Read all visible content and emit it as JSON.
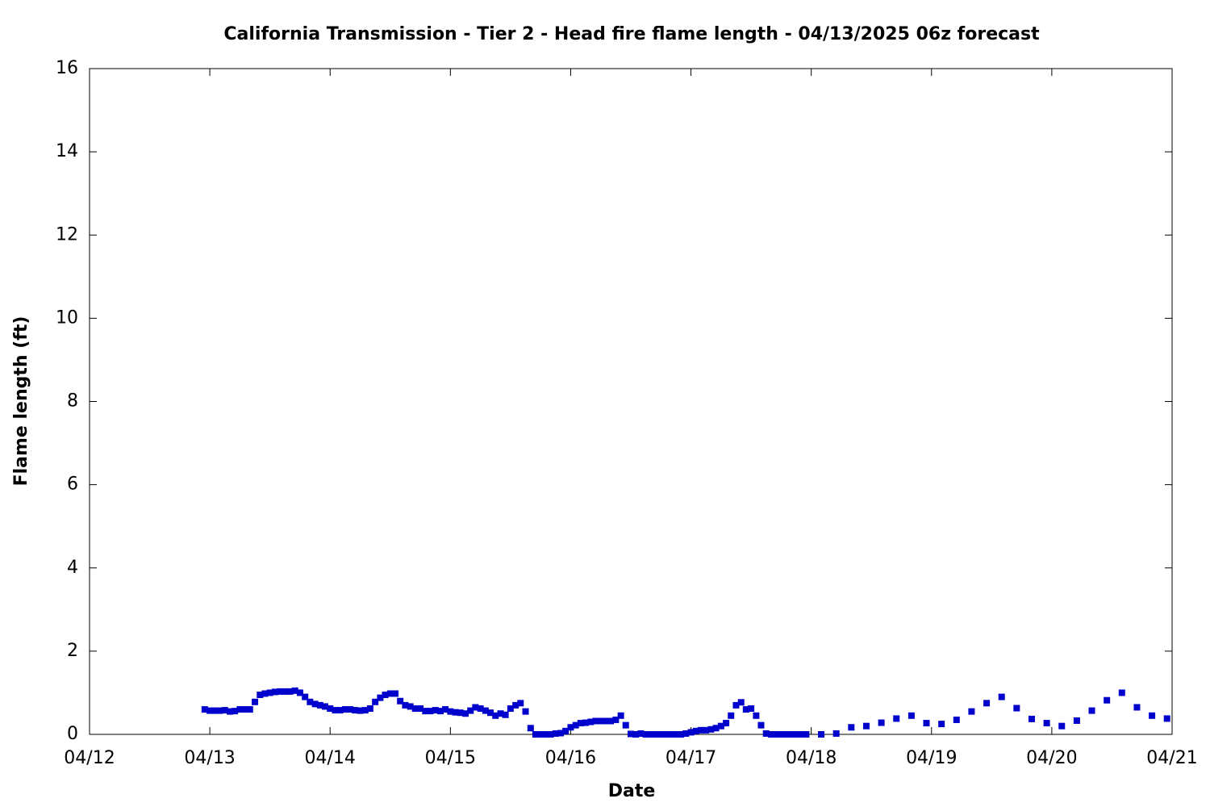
{
  "chart_data": {
    "type": "scatter",
    "title": "California Transmission - Tier 2 - Head fire flame length - 04/13/2025 06z forecast",
    "x_label": "Date",
    "y_label": "Flame length (ft)",
    "xlim": [
      0,
      9
    ],
    "xticks": [
      {
        "value": 0,
        "label": "04/12"
      },
      {
        "value": 1,
        "label": "04/13"
      },
      {
        "value": 2,
        "label": "04/14"
      },
      {
        "value": 3,
        "label": "04/15"
      },
      {
        "value": 4,
        "label": "04/16"
      },
      {
        "value": 5,
        "label": "04/17"
      },
      {
        "value": 6,
        "label": "04/18"
      },
      {
        "value": 7,
        "label": "04/19"
      },
      {
        "value": 8,
        "label": "04/20"
      },
      {
        "value": 9,
        "label": "04/21"
      }
    ],
    "ylim": [
      0,
      16
    ],
    "yticks": [
      0,
      2,
      4,
      6,
      8,
      10,
      12,
      14,
      16
    ],
    "grid": false,
    "series": [
      {
        "color": "#0000cc",
        "x": [
          0.958,
          1.0,
          1.042,
          1.083,
          1.125,
          1.167,
          1.208,
          1.25,
          1.292,
          1.333,
          1.375,
          1.417,
          1.458,
          1.5,
          1.542,
          1.583,
          1.625,
          1.667,
          1.708,
          1.75,
          1.792,
          1.833,
          1.875,
          1.917,
          1.958,
          2.0,
          2.042,
          2.083,
          2.125,
          2.167,
          2.208,
          2.25,
          2.292,
          2.333,
          2.375,
          2.417,
          2.458,
          2.5,
          2.542,
          2.583,
          2.625,
          2.667,
          2.708,
          2.75,
          2.792,
          2.833,
          2.875,
          2.917,
          2.958,
          3.0,
          3.042,
          3.083,
          3.125,
          3.167,
          3.208,
          3.25,
          3.292,
          3.333,
          3.375,
          3.417,
          3.458,
          3.5,
          3.542,
          3.583,
          3.625,
          3.667,
          3.708,
          3.75,
          3.792,
          3.833,
          3.875,
          3.917,
          3.958,
          4.0,
          4.042,
          4.083,
          4.125,
          4.167,
          4.208,
          4.25,
          4.292,
          4.333,
          4.375,
          4.417,
          4.458,
          4.5,
          4.542,
          4.583,
          4.625,
          4.667,
          4.708,
          4.75,
          4.792,
          4.833,
          4.875,
          4.917,
          4.958,
          5.0,
          5.042,
          5.083,
          5.125,
          5.167,
          5.208,
          5.25,
          5.292,
          5.333,
          5.375,
          5.417,
          5.458,
          5.5,
          5.542,
          5.583,
          5.625,
          5.667,
          5.708,
          5.75,
          5.792,
          5.833,
          5.875,
          5.917,
          5.958,
          6.083,
          6.208,
          6.333,
          6.458,
          6.583,
          6.708,
          6.833,
          6.958,
          7.083,
          7.208,
          7.333,
          7.458,
          7.583,
          7.708,
          7.833,
          7.958,
          8.083,
          8.208,
          8.333,
          8.458,
          8.583,
          8.708,
          8.833,
          8.958
        ],
        "values": [
          0.6,
          0.57,
          0.57,
          0.57,
          0.58,
          0.55,
          0.56,
          0.6,
          0.6,
          0.6,
          0.78,
          0.95,
          0.98,
          1.0,
          1.02,
          1.03,
          1.03,
          1.03,
          1.05,
          1.0,
          0.9,
          0.78,
          0.73,
          0.7,
          0.67,
          0.62,
          0.58,
          0.58,
          0.6,
          0.6,
          0.58,
          0.57,
          0.58,
          0.62,
          0.78,
          0.88,
          0.95,
          0.98,
          0.98,
          0.8,
          0.7,
          0.67,
          0.62,
          0.62,
          0.56,
          0.56,
          0.58,
          0.56,
          0.6,
          0.55,
          0.53,
          0.52,
          0.5,
          0.57,
          0.65,
          0.62,
          0.57,
          0.52,
          0.45,
          0.5,
          0.47,
          0.62,
          0.7,
          0.75,
          0.55,
          0.15,
          0,
          0,
          0,
          0,
          0.02,
          0.03,
          0.08,
          0.17,
          0.22,
          0.27,
          0.28,
          0.3,
          0.32,
          0.32,
          0.32,
          0.32,
          0.35,
          0.45,
          0.22,
          0.01,
          0,
          0.02,
          0,
          0,
          0,
          0,
          0,
          0,
          0,
          0,
          0.02,
          0.05,
          0.08,
          0.1,
          0.1,
          0.12,
          0.15,
          0.2,
          0.27,
          0.45,
          0.7,
          0.77,
          0.6,
          0.62,
          0.45,
          0.22,
          0.02,
          0,
          0,
          0,
          0,
          0,
          0,
          0,
          0,
          0,
          0.02,
          0.17,
          0.2,
          0.28,
          0.38,
          0.45,
          0.27,
          0.25,
          0.35,
          0.55,
          0.75,
          0.9,
          0.63,
          0.37,
          0.27,
          0.2,
          0.33,
          0.57,
          0.82,
          1.0,
          0.65,
          0.45,
          0.38
        ]
      }
    ]
  }
}
